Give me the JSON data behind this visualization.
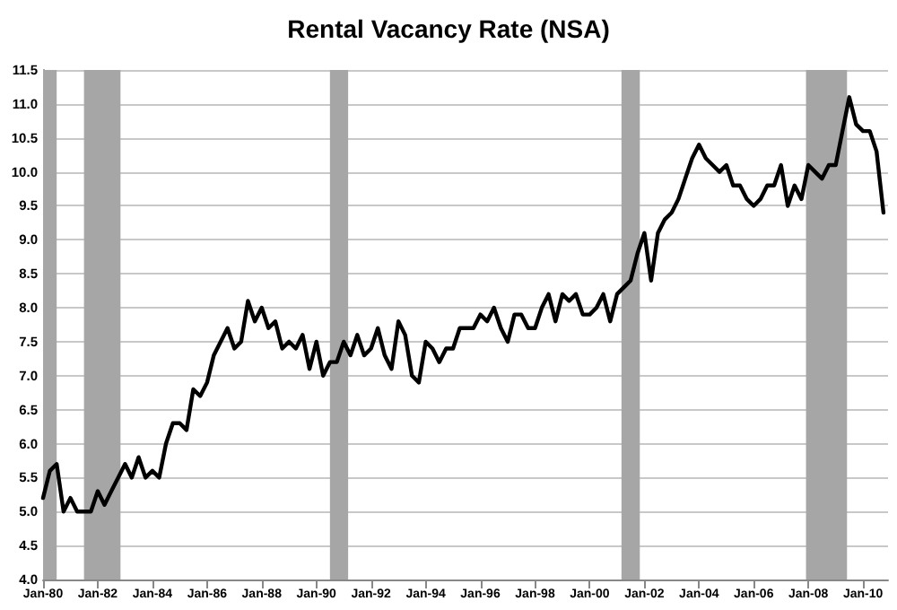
{
  "chart_data": {
    "type": "line",
    "title": "Rental Vacancy Rate (NSA)",
    "x": [
      "1980-01",
      "1980-04",
      "1980-07",
      "1980-10",
      "1981-01",
      "1981-04",
      "1981-07",
      "1981-10",
      "1982-01",
      "1982-04",
      "1982-07",
      "1982-10",
      "1983-01",
      "1983-04",
      "1983-07",
      "1983-10",
      "1984-01",
      "1984-04",
      "1984-07",
      "1984-10",
      "1985-01",
      "1985-04",
      "1985-07",
      "1985-10",
      "1986-01",
      "1986-04",
      "1986-07",
      "1986-10",
      "1987-01",
      "1987-04",
      "1987-07",
      "1987-10",
      "1988-01",
      "1988-04",
      "1988-07",
      "1988-10",
      "1989-01",
      "1989-04",
      "1989-07",
      "1989-10",
      "1990-01",
      "1990-04",
      "1990-07",
      "1990-10",
      "1991-01",
      "1991-04",
      "1991-07",
      "1991-10",
      "1992-01",
      "1992-04",
      "1992-07",
      "1992-10",
      "1993-01",
      "1993-04",
      "1993-07",
      "1993-10",
      "1994-01",
      "1994-04",
      "1994-07",
      "1994-10",
      "1995-01",
      "1995-04",
      "1995-07",
      "1995-10",
      "1996-01",
      "1996-04",
      "1996-07",
      "1996-10",
      "1997-01",
      "1997-04",
      "1997-07",
      "1997-10",
      "1998-01",
      "1998-04",
      "1998-07",
      "1998-10",
      "1999-01",
      "1999-04",
      "1999-07",
      "1999-10",
      "2000-01",
      "2000-04",
      "2000-07",
      "2000-10",
      "2001-01",
      "2001-04",
      "2001-07",
      "2001-10",
      "2002-01",
      "2002-04",
      "2002-07",
      "2002-10",
      "2003-01",
      "2003-04",
      "2003-07",
      "2003-10",
      "2004-01",
      "2004-04",
      "2004-07",
      "2004-10",
      "2005-01",
      "2005-04",
      "2005-07",
      "2005-10",
      "2006-01",
      "2006-04",
      "2006-07",
      "2006-10",
      "2007-01",
      "2007-04",
      "2007-07",
      "2007-10",
      "2008-01",
      "2008-04",
      "2008-07",
      "2008-10",
      "2009-01",
      "2009-04",
      "2009-07",
      "2009-10",
      "2010-01",
      "2010-04",
      "2010-07",
      "2010-10"
    ],
    "series": [
      {
        "color": "#000000",
        "values": [
          5.2,
          5.6,
          5.7,
          5.0,
          5.2,
          5.0,
          5.0,
          5.0,
          5.3,
          5.1,
          5.3,
          5.5,
          5.7,
          5.5,
          5.8,
          5.5,
          5.6,
          5.5,
          6.0,
          6.3,
          6.3,
          6.2,
          6.8,
          6.7,
          6.9,
          7.3,
          7.5,
          7.7,
          7.4,
          7.5,
          8.1,
          7.8,
          8.0,
          7.7,
          7.8,
          7.4,
          7.5,
          7.4,
          7.6,
          7.1,
          7.5,
          7.0,
          7.2,
          7.2,
          7.5,
          7.3,
          7.6,
          7.3,
          7.4,
          7.7,
          7.3,
          7.1,
          7.8,
          7.6,
          7.0,
          6.9,
          7.5,
          7.4,
          7.2,
          7.4,
          7.4,
          7.7,
          7.7,
          7.7,
          7.9,
          7.8,
          8.0,
          7.7,
          7.5,
          7.9,
          7.9,
          7.7,
          7.7,
          8.0,
          8.2,
          7.8,
          8.2,
          8.1,
          8.2,
          7.9,
          7.9,
          8.0,
          8.2,
          7.8,
          8.2,
          8.3,
          8.4,
          8.8,
          9.1,
          8.4,
          9.1,
          9.3,
          9.4,
          9.6,
          9.9,
          10.2,
          10.4,
          10.2,
          10.1,
          10.0,
          10.1,
          9.8,
          9.8,
          9.6,
          9.5,
          9.6,
          9.8,
          9.8,
          10.1,
          9.5,
          9.8,
          9.6,
          10.1,
          10.0,
          9.9,
          10.1,
          10.1,
          10.6,
          11.1,
          10.7,
          10.6,
          10.6,
          10.3,
          9.4
        ]
      }
    ],
    "xlim": [
      "1980-01",
      "2010-12"
    ],
    "xticks": [
      {
        "value": "1980-01",
        "label": "Jan-80"
      },
      {
        "value": "1982-01",
        "label": "Jan-82"
      },
      {
        "value": "1984-01",
        "label": "Jan-84"
      },
      {
        "value": "1986-01",
        "label": "Jan-86"
      },
      {
        "value": "1988-01",
        "label": "Jan-88"
      },
      {
        "value": "1990-01",
        "label": "Jan-90"
      },
      {
        "value": "1992-01",
        "label": "Jan-92"
      },
      {
        "value": "1994-01",
        "label": "Jan-94"
      },
      {
        "value": "1996-01",
        "label": "Jan-96"
      },
      {
        "value": "1998-01",
        "label": "Jan-98"
      },
      {
        "value": "2000-01",
        "label": "Jan-00"
      },
      {
        "value": "2002-01",
        "label": "Jan-02"
      },
      {
        "value": "2004-01",
        "label": "Jan-04"
      },
      {
        "value": "2006-01",
        "label": "Jan-06"
      },
      {
        "value": "2008-01",
        "label": "Jan-08"
      },
      {
        "value": "2010-01",
        "label": "Jan-10"
      }
    ],
    "ylim": [
      4.0,
      11.5
    ],
    "yticks": [
      {
        "value": 4,
        "label": "4.0"
      },
      {
        "value": 4.5,
        "label": "4.5"
      },
      {
        "value": 5,
        "label": "5.0"
      },
      {
        "value": 5.5,
        "label": "5.5"
      },
      {
        "value": 6,
        "label": "6.0"
      },
      {
        "value": 6.5,
        "label": "6.5"
      },
      {
        "value": 7,
        "label": "7.0"
      },
      {
        "value": 7.5,
        "label": "7.5"
      },
      {
        "value": 8,
        "label": "8.0"
      },
      {
        "value": 8.5,
        "label": "8.5"
      },
      {
        "value": 9,
        "label": "9.0"
      },
      {
        "value": 9.5,
        "label": "9.5"
      },
      {
        "value": 10,
        "label": "10.0"
      },
      {
        "value": 10.5,
        "label": "10.5"
      },
      {
        "value": 11,
        "label": "11.0"
      },
      {
        "value": 11.5,
        "label": "11.5"
      }
    ],
    "bands": [
      {
        "axis": "x",
        "from": "1980-01",
        "to": "1980-07",
        "color": "#a6a6a6"
      },
      {
        "axis": "x",
        "from": "1981-07",
        "to": "1982-11",
        "color": "#a6a6a6"
      },
      {
        "axis": "x",
        "from": "1990-07",
        "to": "1991-03",
        "color": "#a6a6a6"
      },
      {
        "axis": "x",
        "from": "2001-03",
        "to": "2001-11",
        "color": "#a6a6a6"
      },
      {
        "axis": "x",
        "from": "2007-12",
        "to": "2009-06",
        "color": "#a6a6a6"
      }
    ],
    "grid": "y",
    "marker": "none",
    "line_style": "solid"
  }
}
